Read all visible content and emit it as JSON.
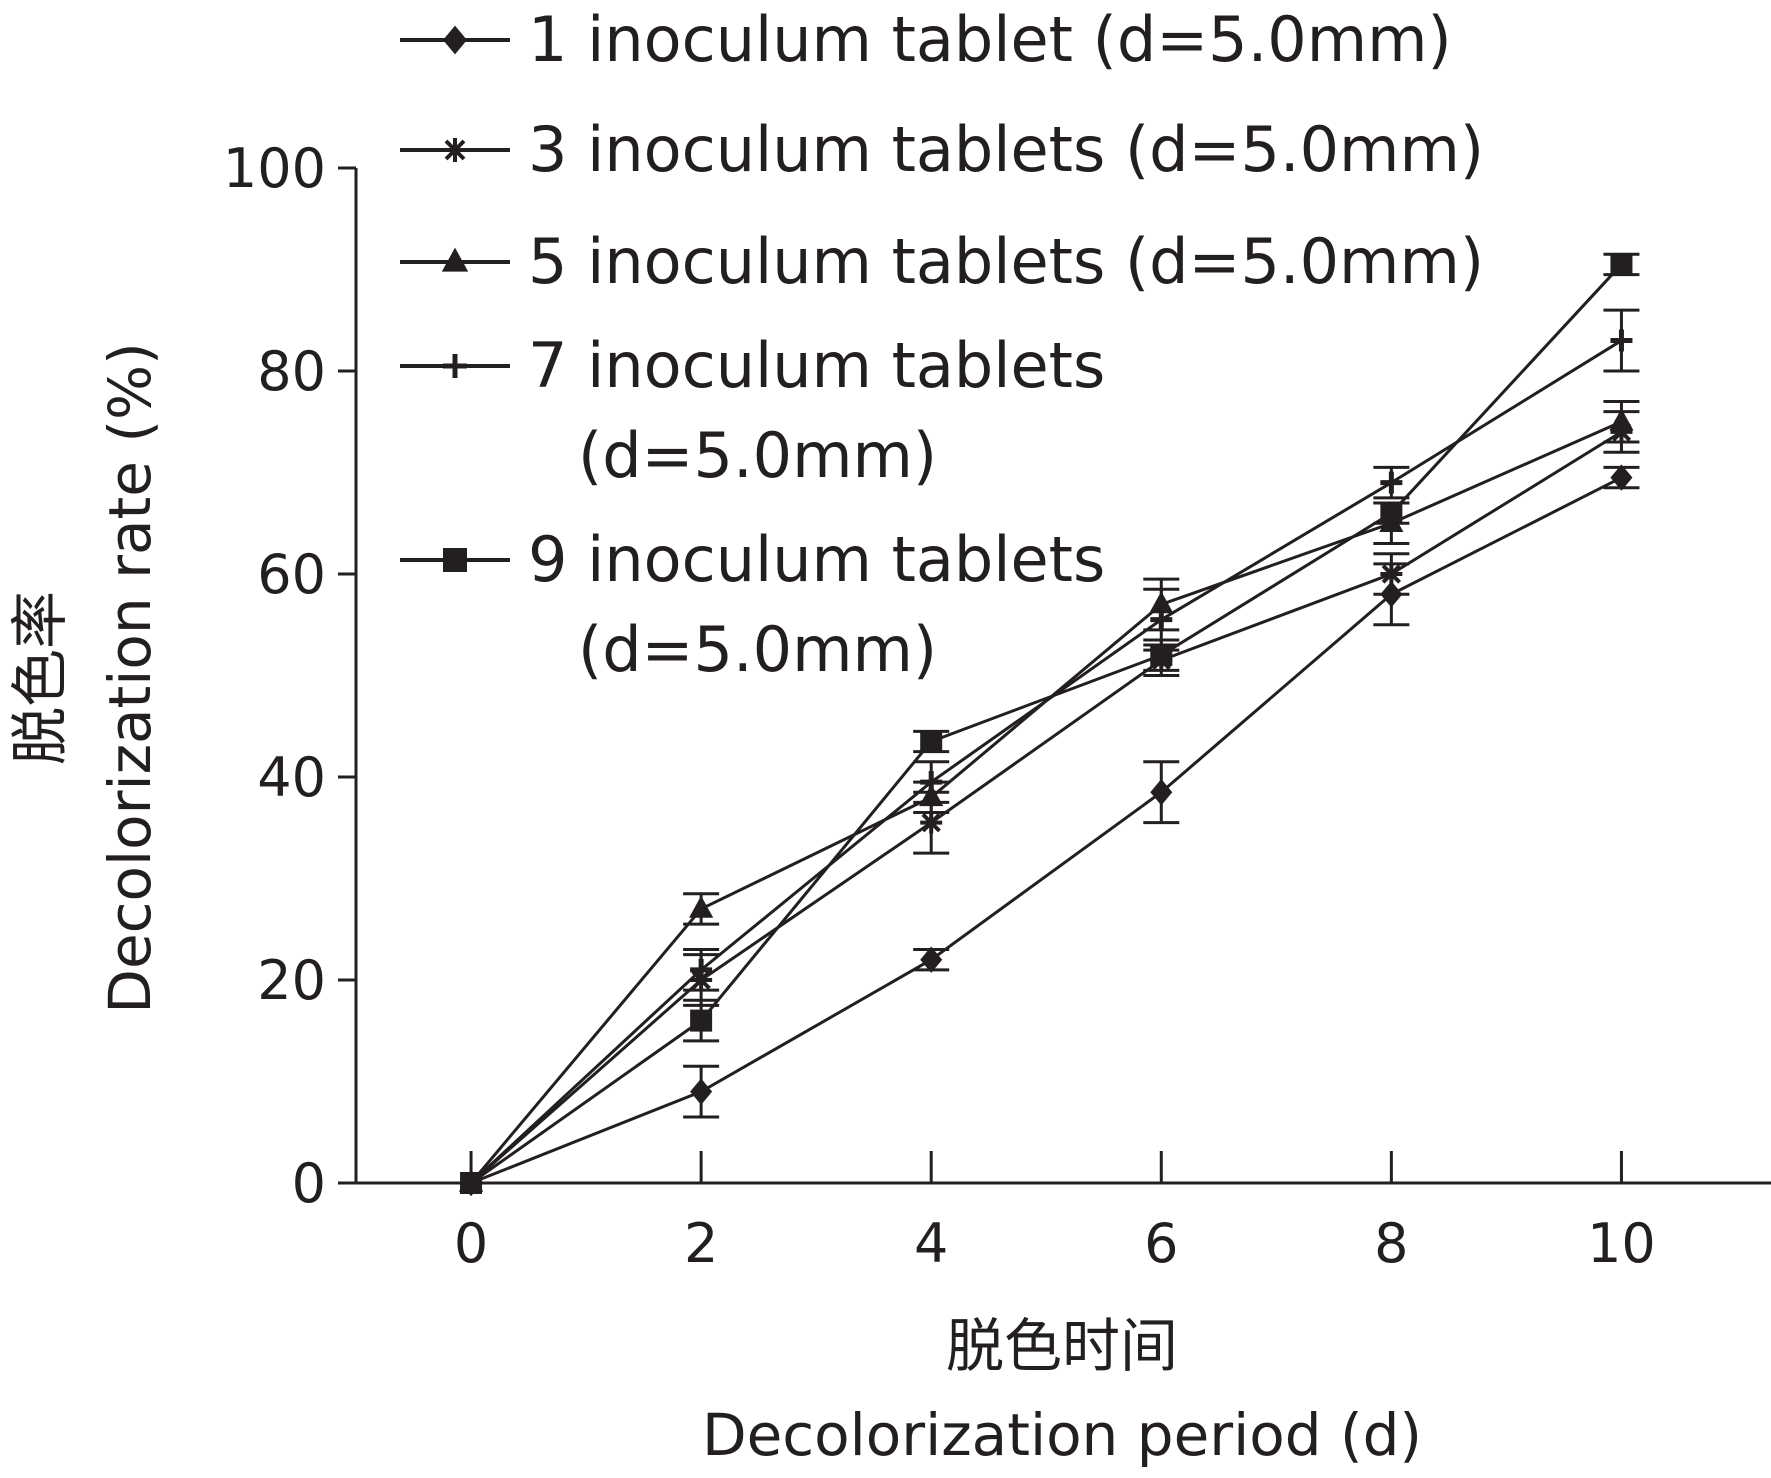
{
  "chart_data": {
    "type": "line",
    "xlabel_cn": "脱色时间",
    "xlabel": "Decolorization period (d)",
    "ylabel_cn": "脱色率",
    "ylabel": "Decolorization rate (%)",
    "x": [
      0,
      2,
      4,
      6,
      8,
      10
    ],
    "x_ticks": [
      "0",
      "2",
      "4",
      "6",
      "8",
      "10"
    ],
    "y_ticks": [
      "0",
      "20",
      "40",
      "60",
      "80",
      "100"
    ],
    "xlim": [
      -1,
      11.3
    ],
    "ylim": [
      0,
      100
    ],
    "grid": false,
    "legend_position": "top",
    "series": [
      {
        "name_lines": [
          "1 inoculum tablet (d=5.0mm)"
        ],
        "marker": "diamond",
        "values": [
          0,
          9,
          22,
          38.5,
          58,
          69.5
        ],
        "errors": [
          0,
          2.5,
          1,
          3,
          3,
          1
        ]
      },
      {
        "name_lines": [
          "3 inoculum tablets (d=5.0mm)"
        ],
        "marker": "asterisk",
        "values": [
          0,
          20,
          35.5,
          51.5,
          60,
          74
        ],
        "errors": [
          0,
          2.5,
          3,
          1.5,
          2,
          2
        ]
      },
      {
        "name_lines": [
          "5 inoculum tablets (d=5.0mm)"
        ],
        "marker": "triangle",
        "values": [
          0,
          27,
          38,
          57,
          65,
          75
        ],
        "errors": [
          0,
          1.5,
          1.5,
          2.5,
          2,
          2
        ]
      },
      {
        "name_lines": [
          "7 inoculum tablets",
          "(d=5.0mm)"
        ],
        "marker": "plus",
        "values": [
          0,
          21,
          39.5,
          55.5,
          69,
          83
        ],
        "errors": [
          0,
          2,
          2,
          3,
          1.5,
          3
        ]
      },
      {
        "name_lines": [
          "9 inoculum tablets",
          "(d=5.0mm)"
        ],
        "marker": "square",
        "values": [
          0,
          16,
          43.5,
          52,
          66,
          90.5
        ],
        "errors": [
          0,
          2,
          1,
          1.5,
          1,
          1
        ]
      }
    ]
  }
}
